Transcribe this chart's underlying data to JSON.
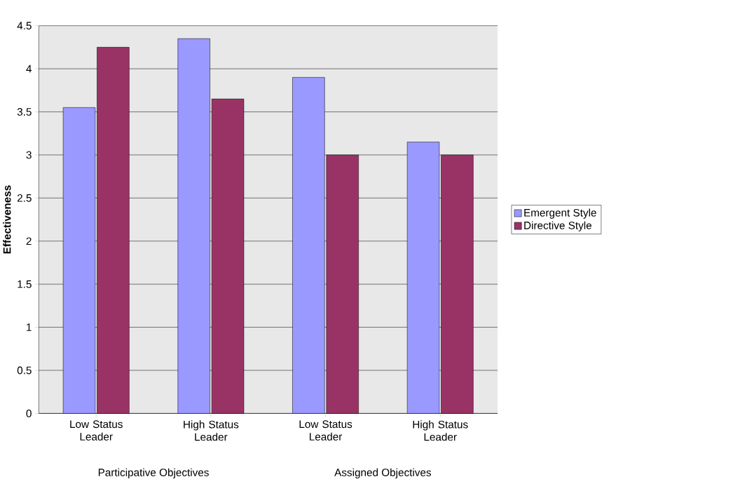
{
  "chart_data": {
    "type": "bar",
    "ylabel": "Effectiveness",
    "categories": [
      "Low Status Leader",
      "High Status Leader",
      "Low Status Leader",
      "High Status Leader"
    ],
    "series": [
      {
        "name": "Emergent Style",
        "color": "#9999ff",
        "values": [
          3.55,
          4.35,
          3.9,
          3.15
        ]
      },
      {
        "name": "Directive Style",
        "color": "#993366",
        "values": [
          4.25,
          3.65,
          3.0,
          3.0
        ]
      }
    ],
    "annotations": [
      "Participative Objectives",
      "Assigned Objectives"
    ],
    "ylim": [
      0,
      4.5
    ],
    "yticks": [
      0,
      0.5,
      1,
      1.5,
      2,
      2.5,
      3,
      3.5,
      4,
      4.5
    ],
    "grid": "y",
    "legend": "right"
  }
}
